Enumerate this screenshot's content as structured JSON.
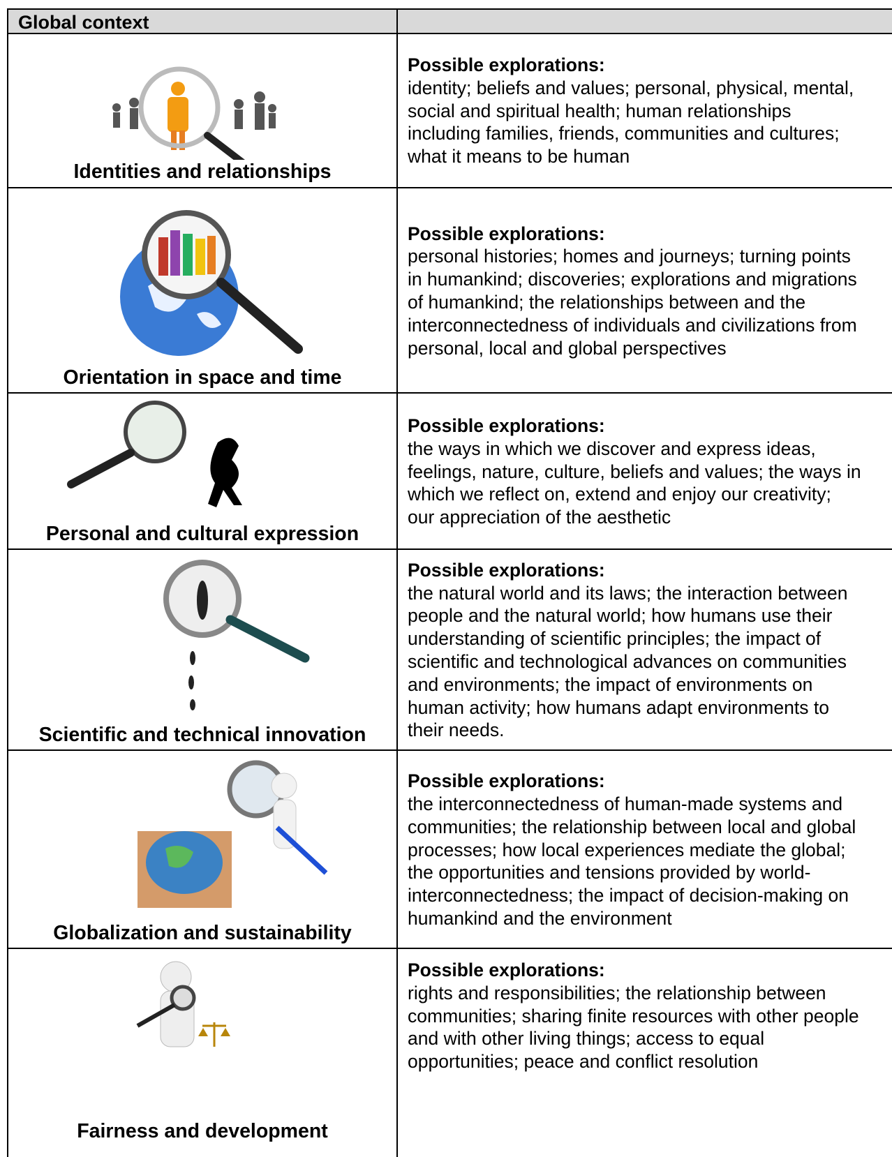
{
  "table": {
    "header": [
      "Global context"
    ],
    "rows": [
      {
        "context": "Identities and relationships",
        "heading": "Possible explorations:",
        "text": "identity; beliefs and values; personal, physical, mental, social and spiritual health; human relationships including families, friends, communities and cultures; what it means to be human"
      },
      {
        "context": "Orientation in space and time",
        "heading": "Possible explorations:",
        "text": "personal histories; homes and journeys; turning points in humankind; discoveries; explorations and migrations of humankind; the relationships between and the interconnectedness of individuals and civilizations from personal, local and global perspectives"
      },
      {
        "context": "Personal and cultural expression",
        "heading": "Possible explorations:",
        "text": "the ways in which we discover and express ideas, feelings, nature, culture, beliefs and values; the ways in which we reflect on, extend and enjoy our creativity; our appreciation of the aesthetic"
      },
      {
        "context": "Scientific and technical innovation",
        "heading": "Possible explorations:",
        "text": "the natural world and its laws; the interaction between people and the natural world; how humans use their understanding of scientific principles; the impact of scientific and technological advances on communities and environments; the impact of environments on human activity; how humans adapt environments to their needs."
      },
      {
        "context": "Globalization and sustainability",
        "heading": "Possible explorations:",
        "text": "the interconnectedness of human-made systems and communities; the relationship between local and global processes; how local experiences mediate the global; the opportunities and tensions provided by world-interconnectedness; the impact of decision-making on humankind and the environment"
      },
      {
        "context": "Fairness and development",
        "heading": "Possible explorations:",
        "text": "rights and responsibilities; the relationship between communities; sharing finite resources with other people and with other living things; access to equal opportunities; peace and conflict resolution"
      }
    ]
  }
}
